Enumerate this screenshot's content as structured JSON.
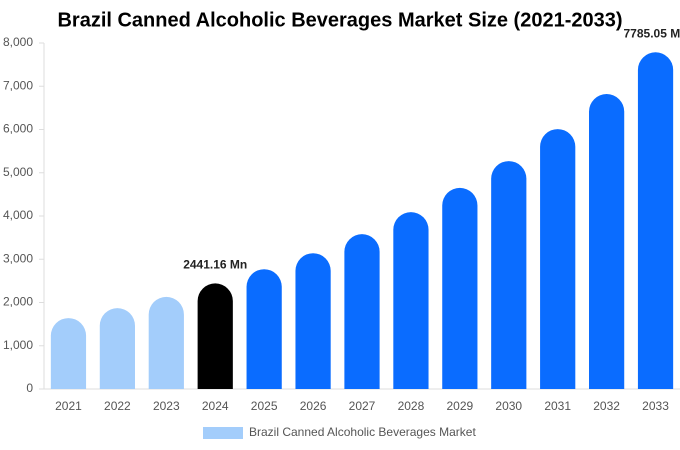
{
  "chart_data": {
    "type": "bar",
    "title": "Brazil Canned Alcoholic Beverages Market Size (2021-2033)",
    "categories": [
      "2021",
      "2022",
      "2023",
      "2024",
      "2025",
      "2026",
      "2027",
      "2028",
      "2029",
      "2030",
      "2031",
      "2032",
      "2033"
    ],
    "series": [
      {
        "name": "Brazil Canned Alcoholic Beverages Market",
        "color": "#a3cdfb",
        "colors": [
          "#a3cdfb",
          "#a3cdfb",
          "#a3cdfb",
          "#000000",
          "#0a6cff",
          "#0a6cff",
          "#0a6cff",
          "#0a6cff",
          "#0a6cff",
          "#0a6cff",
          "#0a6cff",
          "#0a6cff",
          "#0a6cff"
        ],
        "values": [
          1640,
          1870,
          2130,
          2441.16,
          2770,
          3140,
          3580,
          4090,
          4650,
          5270,
          6010,
          6820,
          7785.05
        ],
        "value_labels": [
          null,
          null,
          null,
          "2441.16 Mn",
          null,
          null,
          null,
          null,
          null,
          null,
          null,
          null,
          "7785.05 Mn"
        ]
      }
    ],
    "ylim": [
      0,
      8000
    ],
    "yticks": [
      0,
      {
        "value": 1000,
        "label": "1,000"
      },
      {
        "value": 2000,
        "label": "2,000"
      },
      {
        "value": 3000,
        "label": "3,000"
      },
      {
        "value": 4000,
        "label": "4,000"
      },
      {
        "value": 5000,
        "label": "5,000"
      },
      {
        "value": 6000,
        "label": "6,000"
      },
      {
        "value": 7000,
        "label": "7,000"
      },
      {
        "value": 8000,
        "label": "8,000"
      }
    ],
    "grid": false
  }
}
